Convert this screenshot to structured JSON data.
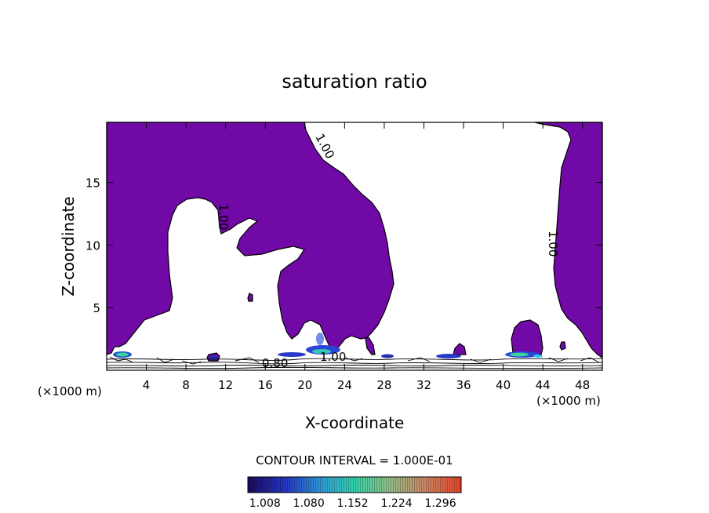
{
  "colors": {
    "saturated_fill": "#7009a6",
    "contour_line": "#000000",
    "background": "#ffffff",
    "colorbar_low": "#1a0a5e",
    "colorbar_mid": "#33d1a8",
    "colorbar_high": "#e84427"
  },
  "chart_data": {
    "type": "heatmap",
    "title": "saturation ratio",
    "xlabel": "X-coordinate",
    "ylabel": "Z-coordinate",
    "x_unit_label": "(×1000 m)",
    "x_unit_label_right": "(×1000 m)",
    "xlim": [
      0,
      50
    ],
    "ylim": [
      0,
      19.8
    ],
    "x_ticks": [
      4,
      8,
      12,
      16,
      20,
      24,
      28,
      32,
      36,
      40,
      44,
      48
    ],
    "y_ticks": [
      5,
      10,
      15
    ],
    "contour_interval_text": "CONTOUR INTERVAL = 1.000E-01",
    "contour_labels": [
      {
        "text": "1.00",
        "x": 21.7,
        "y": 17.9,
        "angle": 62
      },
      {
        "text": "1.00",
        "x": 12.0,
        "y": 12.2,
        "angle": 90
      },
      {
        "text": "1.00",
        "x": 44.6,
        "y": 9.8,
        "angle": 90
      },
      {
        "text": "0.80",
        "x": 17.4,
        "y": 0.55,
        "angle": 0
      },
      {
        "text": "1.00",
        "x": 22.6,
        "y": 0.85,
        "angle": 0
      }
    ],
    "saturated_region_description_value": 1.0,
    "colorbar_ticks": [
      "1.008",
      "1.080",
      "1.152",
      "1.224",
      "1.296"
    ],
    "colorbar_range": [
      0.98,
      1.33
    ]
  }
}
